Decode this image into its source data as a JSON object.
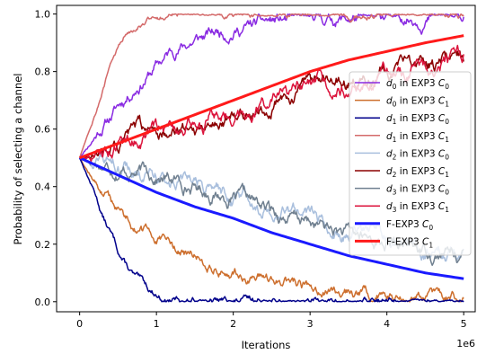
{
  "chart_data": {
    "type": "line",
    "title": "",
    "xlabel": "Iterations",
    "ylabel": "Probability of selecting a channel",
    "x_offset_label": "1e6",
    "xlim": [
      -0.3,
      5.15
    ],
    "ylim": [
      -0.035,
      1.03
    ],
    "xticks": [
      0,
      1,
      2,
      3,
      4,
      5
    ],
    "xtick_labels": [
      "0",
      "1",
      "2",
      "3",
      "4",
      "5"
    ],
    "yticks": [
      0.0,
      0.2,
      0.4,
      0.6,
      0.8,
      1.0
    ],
    "ytick_labels": [
      "0.0",
      "0.2",
      "0.4",
      "0.6",
      "0.8",
      "1.0"
    ],
    "grid": false,
    "legend_position": "right",
    "series": [
      {
        "name": "d_0 in EXP3 C_0",
        "color": "#8a2be2",
        "width": 1.5,
        "noise": 0.012,
        "seed": 11,
        "x": [
          0,
          0.25,
          0.5,
          0.75,
          1.0,
          1.25,
          1.5,
          2.0,
          2.5,
          3.0,
          3.5,
          4.0,
          4.5,
          5.0
        ],
        "y": [
          0.5,
          0.6,
          0.68,
          0.76,
          0.82,
          0.88,
          0.91,
          0.95,
          0.97,
          0.98,
          0.985,
          0.99,
          0.995,
          0.995
        ]
      },
      {
        "name": "d_0 in EXP3 C_1",
        "color": "#cd6f2e",
        "width": 1.5,
        "noise": 0.01,
        "seed": 12,
        "x": [
          0,
          0.25,
          0.5,
          0.75,
          1.0,
          1.25,
          1.5,
          2.0,
          2.5,
          3.0,
          3.5,
          4.0,
          4.5,
          5.0
        ],
        "y": [
          0.5,
          0.4,
          0.32,
          0.26,
          0.22,
          0.18,
          0.15,
          0.1,
          0.07,
          0.05,
          0.035,
          0.025,
          0.015,
          0.005
        ]
      },
      {
        "name": "d_1 in EXP3 C_0",
        "color": "#00008b",
        "width": 1.5,
        "noise": 0.007,
        "seed": 13,
        "x": [
          0,
          0.1,
          0.2,
          0.3,
          0.4,
          0.5,
          0.6,
          0.7,
          0.8,
          0.9,
          1.0,
          1.1,
          1.2,
          1.5,
          2.0,
          5.0
        ],
        "y": [
          0.5,
          0.44,
          0.38,
          0.3,
          0.24,
          0.18,
          0.13,
          0.09,
          0.06,
          0.04,
          0.025,
          0.012,
          0.005,
          0.0,
          0.0,
          0.0
        ]
      },
      {
        "name": "d_1 in EXP3 C_1",
        "color": "#d46a6a",
        "width": 1.5,
        "noise": 0.006,
        "seed": 14,
        "x": [
          0,
          0.1,
          0.2,
          0.3,
          0.4,
          0.5,
          0.6,
          0.7,
          0.8,
          0.9,
          1.0,
          1.2,
          1.5,
          2.0,
          5.0
        ],
        "y": [
          0.5,
          0.58,
          0.66,
          0.74,
          0.82,
          0.88,
          0.93,
          0.96,
          0.98,
          0.99,
          0.995,
          1.0,
          1.0,
          1.0,
          1.0
        ]
      },
      {
        "name": "d_2 in EXP3 C_0",
        "color": "#a9bfdd",
        "width": 1.5,
        "noise": 0.014,
        "seed": 15,
        "x": [
          0,
          0.5,
          1.0,
          1.5,
          2.0,
          2.5,
          3.0,
          3.5,
          4.0,
          4.5,
          5.0
        ],
        "y": [
          0.5,
          0.47,
          0.43,
          0.4,
          0.37,
          0.33,
          0.29,
          0.26,
          0.22,
          0.19,
          0.17
        ]
      },
      {
        "name": "d_2 in EXP3 C_1",
        "color": "#8b0000",
        "width": 1.5,
        "noise": 0.014,
        "seed": 16,
        "x": [
          0,
          0.5,
          1.0,
          1.5,
          2.0,
          2.5,
          3.0,
          3.5,
          4.0,
          4.5,
          5.0
        ],
        "y": [
          0.5,
          0.55,
          0.6,
          0.62,
          0.65,
          0.7,
          0.74,
          0.77,
          0.8,
          0.83,
          0.84
        ]
      },
      {
        "name": "d_3 in EXP3 C_0",
        "color": "#708090",
        "width": 1.5,
        "noise": 0.013,
        "seed": 17,
        "x": [
          0,
          0.5,
          1.0,
          1.5,
          2.0,
          2.5,
          3.0,
          3.5,
          4.0,
          4.5,
          5.0
        ],
        "y": [
          0.5,
          0.47,
          0.44,
          0.4,
          0.36,
          0.31,
          0.27,
          0.23,
          0.2,
          0.18,
          0.165
        ]
      },
      {
        "name": "d_3 in EXP3 C_1",
        "color": "#dc143c",
        "width": 1.5,
        "noise": 0.014,
        "seed": 18,
        "x": [
          0,
          0.5,
          1.0,
          1.5,
          2.0,
          2.5,
          3.0,
          3.5,
          4.0,
          4.5,
          5.0
        ],
        "y": [
          0.5,
          0.55,
          0.59,
          0.62,
          0.66,
          0.7,
          0.73,
          0.76,
          0.79,
          0.81,
          0.83
        ]
      },
      {
        "name": "F-EXP3 C_0",
        "color": "#1a1aff",
        "width": 3,
        "noise": 0.0,
        "seed": 19,
        "x": [
          0,
          0.5,
          1.0,
          1.5,
          2.0,
          2.5,
          3.0,
          3.5,
          4.0,
          4.5,
          5.0
        ],
        "y": [
          0.5,
          0.44,
          0.38,
          0.33,
          0.29,
          0.24,
          0.2,
          0.16,
          0.13,
          0.1,
          0.08
        ]
      },
      {
        "name": "F-EXP3 C_1",
        "color": "#ff1a1a",
        "width": 3,
        "noise": 0.0,
        "seed": 20,
        "x": [
          0,
          0.5,
          1.0,
          1.5,
          2.0,
          2.5,
          3.0,
          3.5,
          4.0,
          4.5,
          5.0
        ],
        "y": [
          0.5,
          0.55,
          0.6,
          0.65,
          0.7,
          0.75,
          0.8,
          0.84,
          0.87,
          0.9,
          0.925
        ]
      }
    ]
  }
}
